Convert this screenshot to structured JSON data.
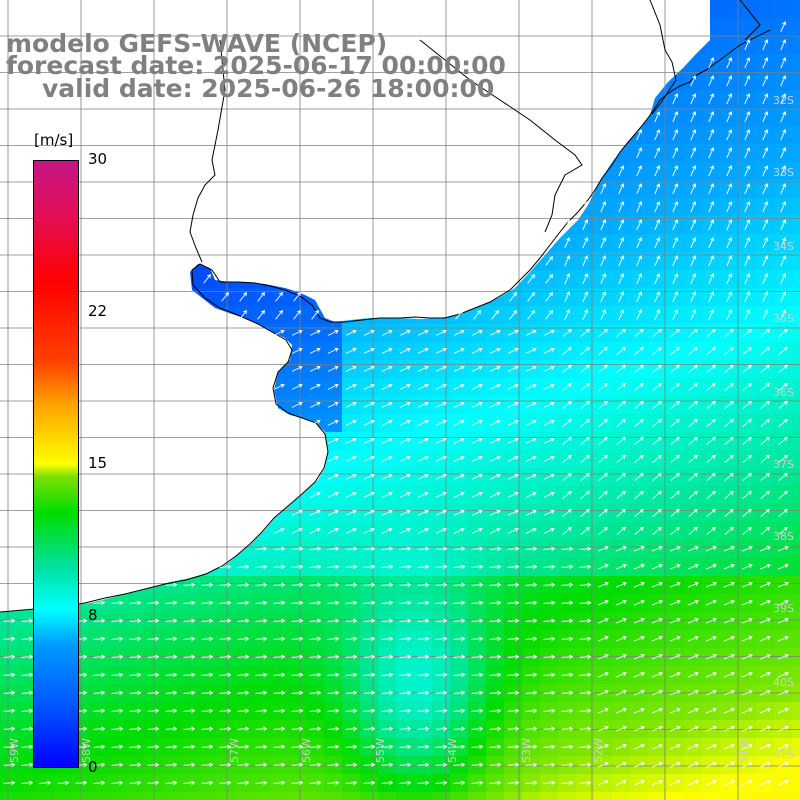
{
  "header": {
    "line1": "modelo GEFS-WAVE (NCEP)",
    "line2": "forecast date: 2025-06-17 00:00:00",
    "line3": "valid date: 2025-06-26 18:00:00"
  },
  "colorbar": {
    "units": "[m/s]",
    "ticks": [
      {
        "label": "30",
        "value": 30
      },
      {
        "label": "22",
        "value": 22
      },
      {
        "label": "15",
        "value": 15
      },
      {
        "label": "8",
        "value": 8
      },
      {
        "label": "0",
        "value": 0
      }
    ]
  },
  "lat_labels": [
    "32S",
    "33S",
    "34S",
    "35S",
    "36S",
    "37S",
    "38S",
    "39S",
    "40S",
    "41S"
  ],
  "lon_labels": [
    "59W",
    "58W",
    "57W",
    "56W",
    "55W",
    "54W",
    "53W",
    "52W",
    "51W"
  ],
  "colors": {
    "land": "#ffffff",
    "grid": "#7f7f7f",
    "coast": "#000000",
    "arrows": "#ffffff",
    "title": "#808080"
  }
}
